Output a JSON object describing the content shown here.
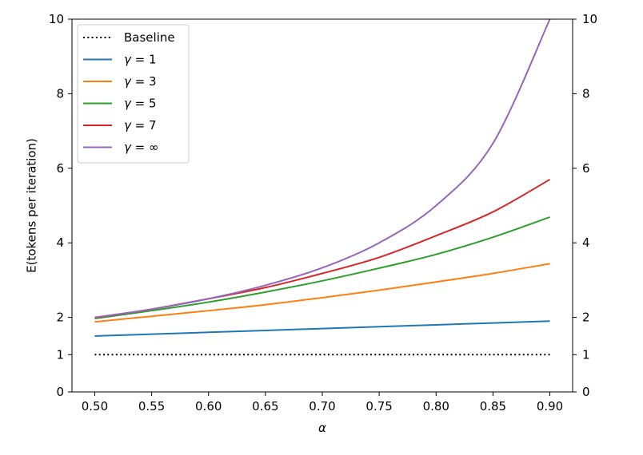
{
  "chart_data": {
    "type": "line",
    "title": "",
    "xlabel": "α",
    "ylabel": "E(tokens per iteration)",
    "xlim": [
      0.48,
      0.92
    ],
    "ylim": [
      0,
      10
    ],
    "x_ticks": [
      "0.50",
      "0.55",
      "0.60",
      "0.65",
      "0.70",
      "0.75",
      "0.80",
      "0.85",
      "0.90"
    ],
    "x_tick_values": [
      0.5,
      0.55,
      0.6,
      0.65,
      0.7,
      0.75,
      0.8,
      0.85,
      0.9
    ],
    "y_ticks": [
      "0",
      "1",
      "2",
      "4",
      "6",
      "8",
      "10"
    ],
    "y_tick_values": [
      0,
      1,
      2,
      4,
      6,
      8,
      10
    ],
    "right_y_ticks": [
      "0",
      "1",
      "2",
      "4",
      "6",
      "8",
      "10"
    ],
    "grid": false,
    "legend_position": "top-left",
    "x": [
      0.5,
      0.55,
      0.6,
      0.65,
      0.7,
      0.75,
      0.8,
      0.85,
      0.9
    ],
    "series": [
      {
        "name": "Baseline",
        "label_prefix": "",
        "label_suffix": "",
        "color": "#000000",
        "style": "dotted",
        "values": [
          1,
          1,
          1,
          1,
          1,
          1,
          1,
          1,
          1
        ]
      },
      {
        "name": "γ = 1",
        "label_prefix": "γ",
        "label_suffix": " = 1",
        "color": "#1f77b4",
        "style": "solid",
        "values": [
          1.5,
          1.55,
          1.6,
          1.65,
          1.7,
          1.75,
          1.8,
          1.85,
          1.9
        ]
      },
      {
        "name": "γ = 3",
        "label_prefix": "γ",
        "label_suffix": " = 3",
        "color": "#ff7f0e",
        "style": "solid",
        "values": [
          1.88,
          2.03,
          2.18,
          2.34,
          2.53,
          2.73,
          2.95,
          3.18,
          3.44
        ]
      },
      {
        "name": "γ = 5",
        "label_prefix": "γ",
        "label_suffix": " = 5",
        "color": "#2ca02c",
        "style": "solid",
        "values": [
          1.97,
          2.18,
          2.41,
          2.68,
          2.98,
          3.32,
          3.69,
          4.15,
          4.69
        ]
      },
      {
        "name": "γ = 7",
        "label_prefix": "γ",
        "label_suffix": " = 7",
        "color": "#d62728",
        "style": "solid",
        "values": [
          1.99,
          2.22,
          2.5,
          2.8,
          3.18,
          3.61,
          4.19,
          4.83,
          5.7
        ]
      },
      {
        "name": "γ = ∞",
        "label_prefix": "γ",
        "label_suffix": " = ∞",
        "color": "#9467bd",
        "style": "solid",
        "values": [
          2.0,
          2.22,
          2.5,
          2.86,
          3.33,
          4.0,
          5.0,
          6.67,
          10.0
        ]
      }
    ]
  }
}
